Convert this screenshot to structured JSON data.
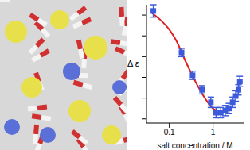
{
  "chart_data": {
    "type": "scatter",
    "xlabel": "salt concentration / M",
    "ylabel": "Δ ε",
    "log": "x",
    "grid": false,
    "tick_labels": "x",
    "xlim": [
      0.03,
      5
    ],
    "xticks": [
      0.1,
      1
    ],
    "ylim": [
      -5.2,
      0.5
    ],
    "yticks": [
      -5,
      -4,
      -3,
      -2,
      -1,
      0
    ],
    "series": [
      {
        "type": "scatter",
        "color": "#3b5bdb",
        "marker": "square",
        "x": [
          0.043,
          0.19,
          0.34,
          0.56,
          0.89,
          1.17,
          1.5,
          1.9,
          2.3,
          2.8,
          3.3,
          3.8,
          4.1
        ],
        "values": [
          0.2,
          -1.8,
          -2.9,
          -3.6,
          -4.2,
          -4.7,
          -4.7,
          -4.6,
          -4.5,
          -4.2,
          -3.9,
          -3.6,
          -3.2
        ],
        "errors": [
          0.3,
          0.2,
          0.2,
          0.2,
          0.25,
          0.25,
          0.25,
          0.25,
          0.25,
          0.25,
          0.25,
          0.25,
          0.25
        ]
      },
      {
        "type": "line",
        "color": "#e02020",
        "line_style": "solid",
        "x": [
          0.04,
          0.06,
          0.1,
          0.15,
          0.2,
          0.3,
          0.5,
          0.7,
          1.0,
          1.2
        ],
        "values": [
          0.1,
          -0.2,
          -0.7,
          -1.3,
          -1.9,
          -2.7,
          -3.6,
          -4.1,
          -4.5,
          -4.6
        ]
      }
    ]
  }
}
